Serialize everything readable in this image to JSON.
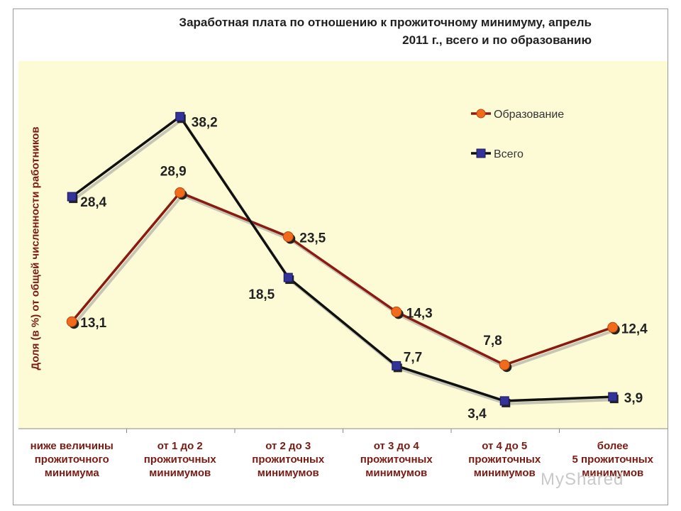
{
  "chart_data": {
    "type": "line",
    "title_line1": "Заработная плата по отношению к прожиточному минимуму, апрель",
    "title_line2": "2011 г., всего и по образованию",
    "ylabel": "Доля (в %) от общей численности работников",
    "categories": [
      [
        "ниже величины",
        "прожиточного",
        "минимума"
      ],
      [
        "от 1 до 2",
        "прожиточных",
        "минимумов"
      ],
      [
        "от 2 до 3",
        "прожиточных",
        "минимумов"
      ],
      [
        "от 3 до 4",
        "прожиточных",
        "минимумов"
      ],
      [
        "от 4 до 5",
        "прожиточных",
        "минимумов"
      ],
      [
        "более",
        "5 прожиточных",
        "минимумов"
      ]
    ],
    "series": [
      {
        "name": "Образование",
        "values": [
          13.1,
          28.9,
          23.5,
          14.3,
          7.8,
          12.4
        ],
        "labels": [
          "13,1",
          "28,9",
          "23,5",
          "14,3",
          "7,8",
          "12,4"
        ],
        "color": "#8b1a10",
        "marker": "circle",
        "marker_color": "#f26a1b"
      },
      {
        "name": "Всего",
        "values": [
          28.4,
          38.2,
          18.5,
          7.7,
          3.4,
          3.9
        ],
        "labels": [
          "28,4",
          "38,2",
          "18,5",
          "7,7",
          "3,4",
          "3,9"
        ],
        "color": "#101010",
        "marker": "square",
        "marker_color": "#33339a"
      }
    ],
    "ylim": [
      0,
      45
    ],
    "legend_position": "top-right",
    "plot_background": "#fdfbd6",
    "grid": false
  },
  "watermark": "MyShared"
}
